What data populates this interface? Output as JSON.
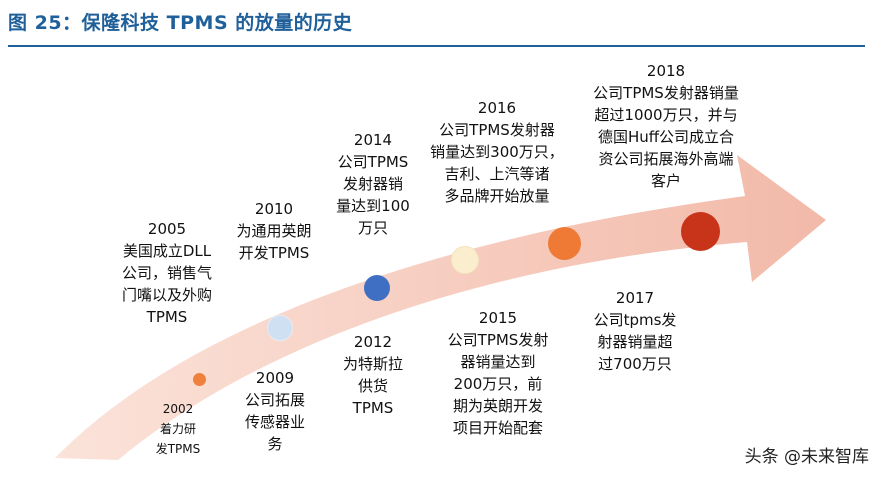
{
  "title": "图 25：保隆科技 TPMS 的放量的历史",
  "colors": {
    "title": "#1f5f9a",
    "arrow": "#f2b9a8",
    "dot_2002": "#f0813d",
    "dot_2009": "#cfe0f2",
    "dot_2012": "#3f6fc2",
    "dot_2015": "#fbeecf",
    "dot_2017": "#ee7a35",
    "dot_2018": "#c8341a"
  },
  "milestones": {
    "m2002": {
      "year": "2002",
      "desc": "着力研\n发TPMS"
    },
    "m2005": {
      "year": "2005",
      "desc": "美国成立DLL\n公司，销售气\n门嘴以及外购\nTPMS"
    },
    "m2009": {
      "year": "2009",
      "desc": "公司拓展\n传感器业\n务"
    },
    "m2010": {
      "year": "2010",
      "desc": "为通用英朗\n开发TPMS"
    },
    "m2012": {
      "year": "2012",
      "desc": "为特斯拉\n供货\nTPMS"
    },
    "m2014": {
      "year": "2014",
      "desc": "公司TPMS\n发射器销\n量达到100\n万只"
    },
    "m2015": {
      "year": "2015",
      "desc": "公司TPMS发射\n器销量达到\n200万只，前\n期为英朗开发\n项目开始配套"
    },
    "m2016": {
      "year": "2016",
      "desc": "公司TPMS发射器\n销量达到300万只，\n吉利、上汽等诸\n多品牌开始放量"
    },
    "m2017": {
      "year": "2017",
      "desc": "公司tpms发\n射器销量超\n过700万只"
    },
    "m2018": {
      "year": "2018",
      "desc": "公司TPMS发射器销量\n超过1000万只，并与\n德国Huff公司成立合\n资公司拓展海外高端\n客户"
    }
  },
  "watermark": "头条 @未来智库"
}
